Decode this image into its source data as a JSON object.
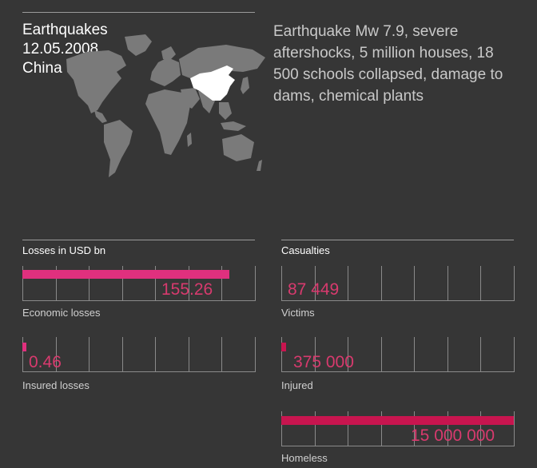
{
  "event": {
    "type": "Earthquakes",
    "date": "12.05.2008",
    "country": "China"
  },
  "description": "Earthquake Mw 7.9, severe aftershocks, 5 million houses, 18 500 schools collapsed, damage to dams, chemical plants",
  "map": {
    "land_color": "#7a7a7a",
    "highlight_color": "#ffffff",
    "highlighted_country": "China"
  },
  "colors": {
    "losses_bar": "#e0307e",
    "casualties_bar": "#c8154f",
    "value_text": "#d83a6e"
  },
  "losses": {
    "title": "Losses in USD bn",
    "items": [
      {
        "label": "Economic losses",
        "value": "155.26",
        "fraction": 0.89
      },
      {
        "label": "Insured losses",
        "value": "0.46",
        "fraction": 0.004
      }
    ]
  },
  "casualties": {
    "title": "Casualties",
    "items": [
      {
        "label": "Victims",
        "value": "87 449",
        "fraction": 0.0
      },
      {
        "label": "Injured",
        "value": "375 000",
        "fraction": 0.02
      },
      {
        "label": "Homeless",
        "value": "15 000 000",
        "fraction": 1.0
      }
    ]
  }
}
